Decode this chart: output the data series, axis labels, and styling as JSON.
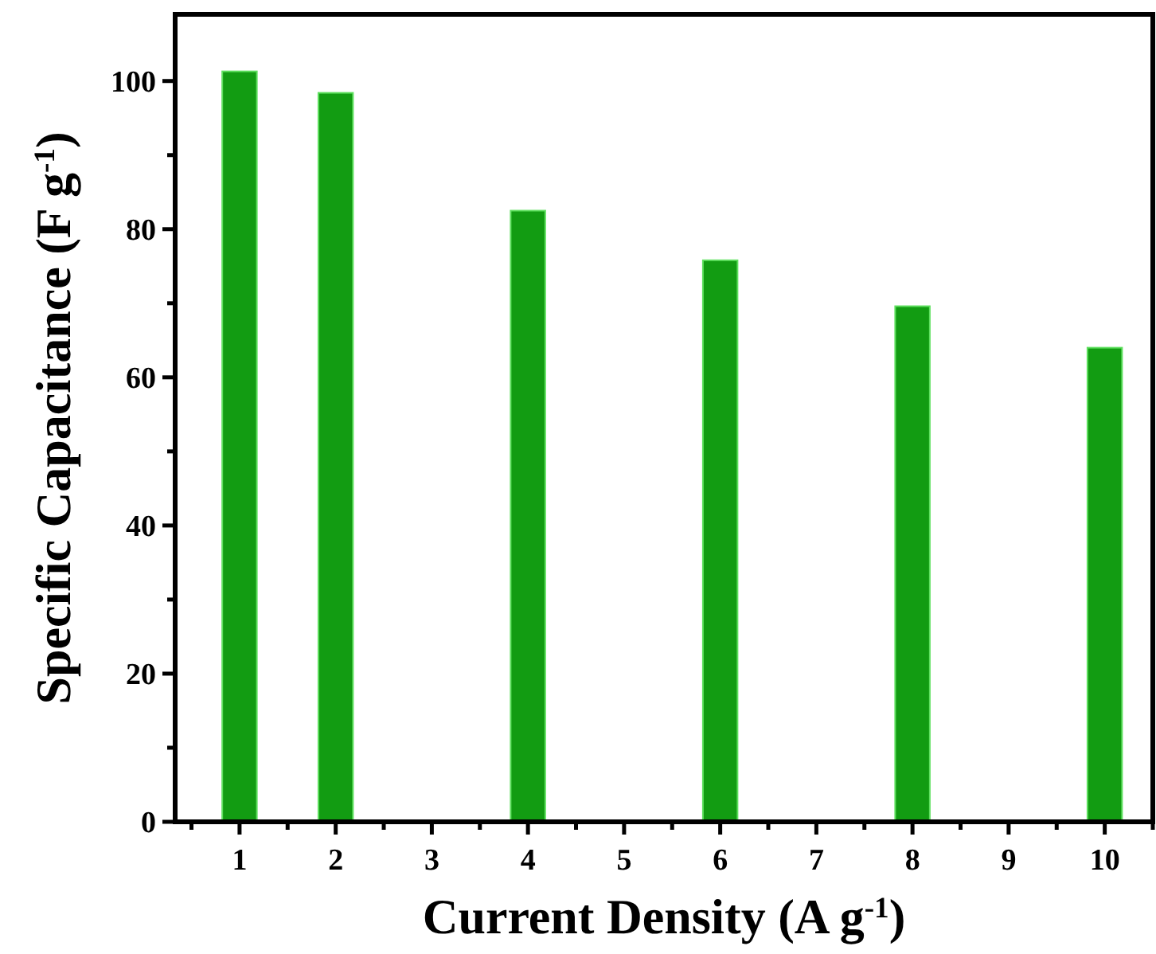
{
  "chart_data": {
    "type": "bar",
    "xlabel": "Current Density (A g$^{-1}$)",
    "ylabel": "Specific Capacitance (F g$^{-1}$)",
    "x": [
      1,
      2,
      4,
      6,
      8,
      10
    ],
    "values": [
      101.3,
      98.4,
      82.5,
      75.8,
      69.6,
      64.0
    ],
    "color": "#129c12",
    "xlim": [
      0.33,
      10.5
    ],
    "xticks": [
      {
        "value": 0.5,
        "label": null
      },
      1,
      {
        "value": 1.5,
        "label": null
      },
      2,
      {
        "value": 2.5,
        "label": null
      },
      3,
      {
        "value": 3.5,
        "label": null
      },
      4,
      {
        "value": 4.5,
        "label": null
      },
      5,
      {
        "value": 5.5,
        "label": null
      },
      6,
      {
        "value": 6.5,
        "label": null
      },
      7,
      {
        "value": 7.5,
        "label": null
      },
      8,
      {
        "value": 8.5,
        "label": null
      },
      9,
      {
        "value": 9.5,
        "label": null
      },
      10,
      {
        "value": 10.5,
        "label": null
      }
    ],
    "ylim": [
      0,
      109
    ],
    "yticks": [
      0,
      {
        "value": 10,
        "label": null
      },
      20,
      {
        "value": 30,
        "label": null
      },
      40,
      {
        "value": 50,
        "label": null
      },
      60,
      {
        "value": 70,
        "label": null
      },
      80,
      {
        "value": 90,
        "label": null
      },
      100
    ],
    "grid": false
  }
}
